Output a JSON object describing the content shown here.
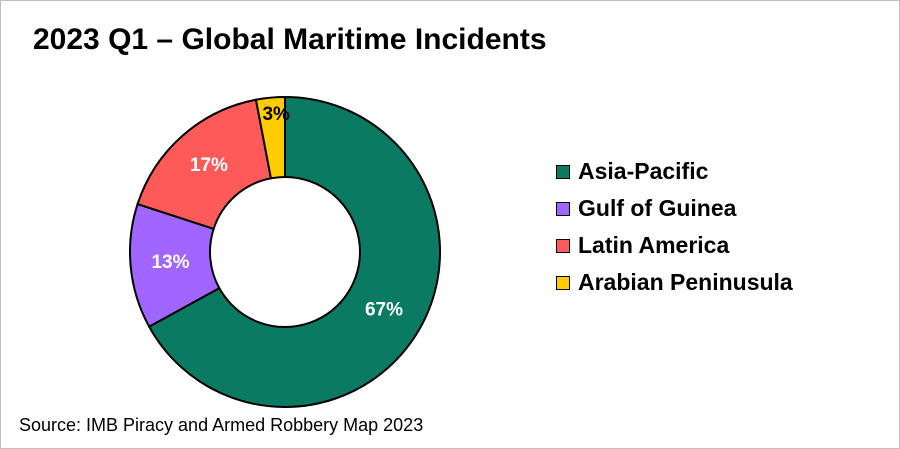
{
  "chart_data": {
    "type": "pie",
    "variant": "donut",
    "title": "2023 Q1 – Global Maritime Incidents",
    "categories": [
      "Asia-Pacific",
      "Gulf of Guinea",
      "Latin America",
      "Arabian Peninusula"
    ],
    "values": [
      67,
      13,
      17,
      3
    ],
    "data_labels": [
      "67%",
      "13%",
      "17%",
      "3%"
    ],
    "colors": [
      "#0a7a63",
      "#a066ff",
      "#ff5a5a",
      "#ffcc00"
    ],
    "legend_placement": "right"
  },
  "source": "Source: IMB Piracy and Armed Robbery Map 2023"
}
